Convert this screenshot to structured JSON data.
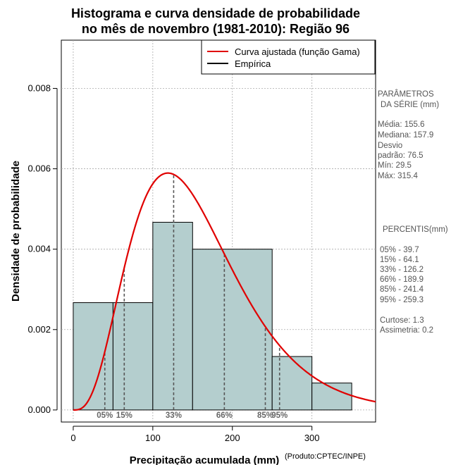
{
  "chart_data": {
    "type": "bar",
    "title_line1": "Histograma e curva densidade de probabilidade",
    "title_line2": "no mês de novembro (1981-2010): Região 96",
    "xlabel": "Precipitação acumulada (mm)",
    "ylabel": "Densidade de probabilidade",
    "credit": "(Produto:CPTEC/INPE)",
    "xlim": [
      -15,
      380
    ],
    "ylim": [
      -0.0003,
      0.0092
    ],
    "x_ticks": [
      0,
      100,
      200,
      300
    ],
    "x_tick_labels": [
      "0",
      "100",
      "200",
      "300"
    ],
    "y_ticks": [
      0.0,
      0.002,
      0.004,
      0.006,
      0.008
    ],
    "y_tick_labels": [
      "0.000",
      "0.002",
      "0.004",
      "0.006",
      "0.008"
    ],
    "grid": true,
    "bins": [
      {
        "x0": 0,
        "x1": 50,
        "density": 0.00267
      },
      {
        "x0": 50,
        "x1": 100,
        "density": 0.00267
      },
      {
        "x0": 100,
        "x1": 150,
        "density": 0.00467
      },
      {
        "x0": 150,
        "x1": 250,
        "density": 0.004
      },
      {
        "x0": 250,
        "x1": 300,
        "density": 0.00133
      },
      {
        "x0": 300,
        "x1": 350,
        "density": 0.00067
      }
    ],
    "gamma_fit": {
      "shape": 4.25,
      "scale": 36.6
    },
    "percentile_lines": [
      {
        "label": "05%",
        "x": 39.7
      },
      {
        "label": "15%",
        "x": 64.1
      },
      {
        "label": "33%",
        "x": 126.2
      },
      {
        "label": "66%",
        "x": 189.9
      },
      {
        "label": "85%",
        "x": 241.4
      },
      {
        "label": "95%",
        "x": 259.3
      }
    ],
    "legend": {
      "position": "top-right",
      "entries": [
        {
          "label": "Curva ajustada (função Gama)",
          "color": "#e00000"
        },
        {
          "label": "Empírica",
          "color": "#000000"
        }
      ]
    },
    "colors": {
      "bar_fill": "#b4cece",
      "curve": "#e00000",
      "percentile": "#555555",
      "grid": "#aaaaaa"
    }
  },
  "side_panel": {
    "params_title": [
      "PARÂMETROS",
      "DA SÉRIE (mm)"
    ],
    "params_lines": [
      "Média:  155.6",
      "Mediana:  157.9",
      "Desvio",
      "padrão:  76.5",
      "Mín:  29.5",
      "Máx:  315.4"
    ],
    "percentis_title": "PERCENTIS(mm)",
    "percentis_lines": [
      "05% -   39.7",
      "15% -   64.1",
      "33% -   126.2",
      "66% -   189.9",
      "85% -   241.4",
      "95% -   259.3"
    ],
    "extra_lines": [
      "Curtose:  1.3",
      "Assimetria:  0.2"
    ]
  }
}
